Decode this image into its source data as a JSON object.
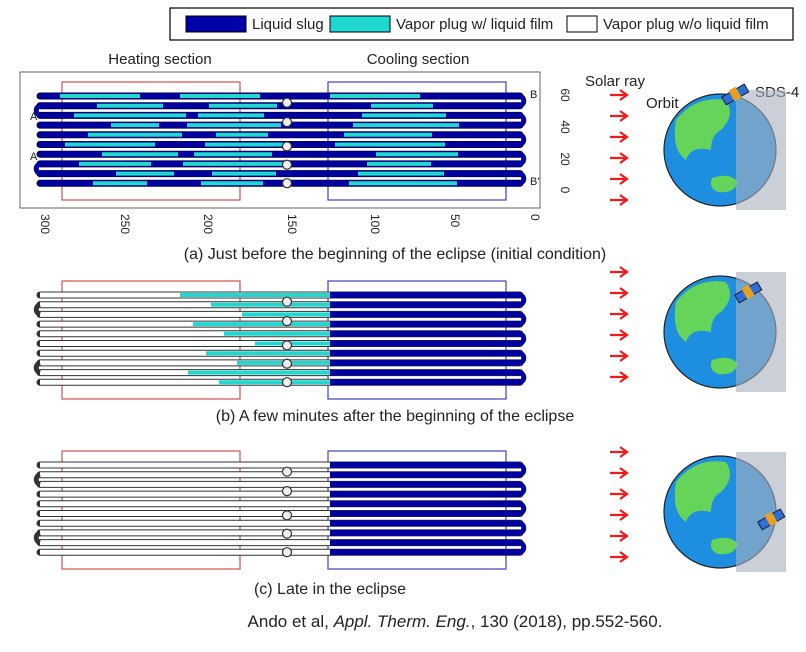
{
  "legend": [
    {
      "label": "Liquid slug"
    },
    {
      "label": "Vapor plug w/ liquid film"
    },
    {
      "label": "Vapor plug w/o liquid film"
    }
  ],
  "panel_a": {
    "heating_label": "Heating section",
    "cooling_label": "Cooling section",
    "x_ticks": [
      300,
      250,
      200,
      150,
      100,
      50,
      0
    ],
    "y_ticks": [
      60,
      40,
      20,
      0
    ],
    "port_labels": [
      "A'",
      "A",
      "B",
      "B'"
    ]
  },
  "solar_ray": "Solar ray",
  "orbit": "Orbit",
  "satellite": "SDS-4",
  "captions": [
    "(a) Just before the beginning of the eclipse (initial condition)",
    "(b) A few minutes after the beginning of the eclipse",
    "(c) Late in the eclipse"
  ],
  "citation": {
    "authors": "Ando  et al, ",
    "journal": "Appl. Therm. Eng.",
    "details": ", 130 (2018), pp.552-560."
  }
}
